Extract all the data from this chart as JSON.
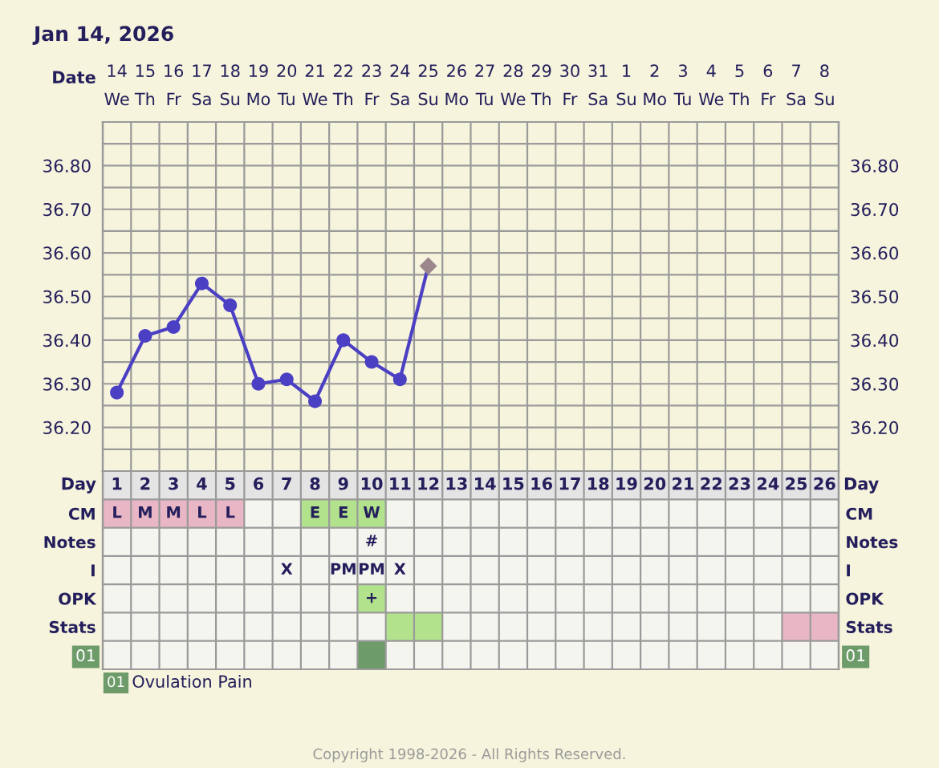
{
  "chart_data": [
    {
      "type": "line",
      "title": "Jan 14, 2026",
      "xlabel": "Date",
      "categories": [
        "14\nWe",
        "15\nTh",
        "16\nFr",
        "17\nSa",
        "18\nSu",
        "19\nMo",
        "20\nTu",
        "21\nWe",
        "22\nTh",
        "23\nFr",
        "24\nSa",
        "25\nSu",
        "26\nMo",
        "27\nTu",
        "28\nWe",
        "29\nTh",
        "30\nFr",
        "31\nSa",
        "1\nSu",
        "2\nMo",
        "3\nTu",
        "4\nWe",
        "5\nTh",
        "6\nFr",
        "7\nSa",
        "8\nSu"
      ],
      "series": [
        {
          "type": "line",
          "color": "#4b3fc4",
          "marker": "none",
          "line_style": "solid",
          "values": [
            36.28,
            36.41,
            36.43,
            36.53,
            36.48,
            36.3,
            36.31,
            36.26,
            36.4,
            36.35,
            36.31,
            36.57,
            null,
            null,
            null,
            null,
            null,
            null,
            null,
            null,
            null,
            null,
            null,
            null,
            null,
            null
          ]
        },
        {
          "type": "scatter",
          "color": "#4b3fc4",
          "marker": "circle",
          "values": [
            36.28,
            36.41,
            36.43,
            36.53,
            36.48,
            36.3,
            36.31,
            36.26,
            36.4,
            36.35,
            36.31,
            null,
            null,
            null,
            null,
            null,
            null,
            null,
            null,
            null,
            null,
            null,
            null,
            null,
            null,
            null
          ]
        },
        {
          "type": "scatter",
          "color": "#9c888c",
          "marker": "diamond",
          "values": [
            null,
            null,
            null,
            null,
            null,
            null,
            null,
            null,
            null,
            null,
            null,
            36.57,
            null,
            null,
            null,
            null,
            null,
            null,
            null,
            null,
            null,
            null,
            null,
            null,
            null,
            null
          ]
        }
      ],
      "ylim": [
        36.1,
        36.9
      ],
      "yticks": [
        {
          "value": 36.15,
          "label": null
        },
        {
          "value": 36.2,
          "label": "36.20"
        },
        {
          "value": 36.25,
          "label": null
        },
        {
          "value": 36.3,
          "label": "36.30"
        },
        {
          "value": 36.35,
          "label": null
        },
        {
          "value": 36.4,
          "label": "36.40"
        },
        {
          "value": 36.45,
          "label": null
        },
        {
          "value": 36.5,
          "label": "36.50"
        },
        {
          "value": 36.55,
          "label": null
        },
        {
          "value": 36.6,
          "label": "36.60"
        },
        {
          "value": 36.65,
          "label": null
        },
        {
          "value": 36.7,
          "label": "36.70"
        },
        {
          "value": 36.75,
          "label": null
        },
        {
          "value": 36.8,
          "label": "36.80"
        },
        {
          "value": 36.85,
          "label": null
        }
      ],
      "y2lim": [
        36.1,
        36.9
      ],
      "y2ticks": [
        {
          "value": 36.15,
          "label": null
        },
        {
          "value": 36.2,
          "label": "36.20"
        },
        {
          "value": 36.25,
          "label": null
        },
        {
          "value": 36.3,
          "label": "36.30"
        },
        {
          "value": 36.35,
          "label": null
        },
        {
          "value": 36.4,
          "label": "36.40"
        },
        {
          "value": 36.45,
          "label": null
        },
        {
          "value": 36.5,
          "label": "36.50"
        },
        {
          "value": 36.55,
          "label": null
        },
        {
          "value": 36.6,
          "label": "36.60"
        },
        {
          "value": 36.65,
          "label": null
        },
        {
          "value": 36.7,
          "label": "36.70"
        },
        {
          "value": 36.75,
          "label": null
        },
        {
          "value": 36.8,
          "label": "36.80"
        },
        {
          "value": 36.85,
          "label": null
        }
      ],
      "grid": true
    },
    {
      "type": "heatmap",
      "xlabel": "Day",
      "categories": [
        "1",
        "2",
        "3",
        "4",
        "5",
        "6",
        "7",
        "8",
        "9",
        "10",
        "11",
        "12",
        "13",
        "14",
        "15",
        "16",
        "17",
        "18",
        "19",
        "20",
        "21",
        "22",
        "23",
        "24",
        "25",
        "26"
      ],
      "y_categories": [
        "CM",
        "Notes",
        "I",
        "OPK",
        "Stats",
        "01"
      ],
      "y2_categories": [
        "CM",
        "Notes",
        "I",
        "OPK",
        "Stats",
        "01"
      ],
      "cells": [
        [
          "L",
          "M",
          "M",
          "L",
          "L",
          null,
          null,
          "E",
          "E",
          "W",
          null,
          null,
          null,
          null,
          null,
          null,
          null,
          null,
          null,
          null,
          null,
          null,
          null,
          null,
          null,
          null
        ],
        [
          null,
          null,
          null,
          null,
          null,
          null,
          null,
          null,
          null,
          "#",
          null,
          null,
          null,
          null,
          null,
          null,
          null,
          null,
          null,
          null,
          null,
          null,
          null,
          null,
          null,
          null
        ],
        [
          null,
          null,
          null,
          null,
          null,
          null,
          "X",
          null,
          "PM",
          "PM",
          "X",
          null,
          null,
          null,
          null,
          null,
          null,
          null,
          null,
          null,
          null,
          null,
          null,
          null,
          null,
          null
        ],
        [
          null,
          null,
          null,
          null,
          null,
          null,
          null,
          null,
          null,
          "+",
          null,
          null,
          null,
          null,
          null,
          null,
          null,
          null,
          null,
          null,
          null,
          null,
          null,
          null,
          null,
          null
        ],
        [
          null,
          null,
          null,
          null,
          null,
          null,
          null,
          null,
          null,
          null,
          true,
          true,
          null,
          null,
          null,
          null,
          null,
          null,
          null,
          null,
          null,
          null,
          null,
          null,
          true,
          true
        ],
        [
          null,
          null,
          null,
          null,
          null,
          null,
          null,
          null,
          null,
          true,
          null,
          null,
          null,
          null,
          null,
          null,
          null,
          null,
          null,
          null,
          null,
          null,
          null,
          null,
          null,
          null
        ]
      ],
      "colors": [
        [
          "#e8b6c4",
          "#e8b6c4",
          "#e8b6c4",
          "#e8b6c4",
          "#e8b6c4",
          null,
          null,
          "#b2e28c",
          "#b2e28c",
          "#b2e28c",
          null,
          null,
          null,
          null,
          null,
          null,
          null,
          null,
          null,
          null,
          null,
          null,
          null,
          null,
          null,
          null
        ],
        [
          null,
          null,
          null,
          null,
          null,
          null,
          null,
          null,
          null,
          null,
          null,
          null,
          null,
          null,
          null,
          null,
          null,
          null,
          null,
          null,
          null,
          null,
          null,
          null,
          null,
          null
        ],
        [
          null,
          null,
          null,
          null,
          null,
          null,
          null,
          null,
          null,
          null,
          null,
          null,
          null,
          null,
          null,
          null,
          null,
          null,
          null,
          null,
          null,
          null,
          null,
          null,
          null,
          null
        ],
        [
          null,
          null,
          null,
          null,
          null,
          null,
          null,
          null,
          null,
          "#b2e28c",
          null,
          null,
          null,
          null,
          null,
          null,
          null,
          null,
          null,
          null,
          null,
          null,
          null,
          null,
          null,
          null
        ],
        [
          null,
          null,
          null,
          null,
          null,
          null,
          null,
          null,
          null,
          null,
          "#b2e28c",
          "#b2e28c",
          null,
          null,
          null,
          null,
          null,
          null,
          null,
          null,
          null,
          null,
          null,
          null,
          "#e8b6c4",
          "#e8b6c4"
        ],
        [
          null,
          null,
          null,
          null,
          null,
          null,
          null,
          null,
          null,
          "#6e9b6a",
          null,
          null,
          null,
          null,
          null,
          null,
          null,
          null,
          null,
          null,
          null,
          null,
          null,
          null,
          null,
          null
        ]
      ],
      "grid": true,
      "annotations": [
        "01",
        "Ovulation Pain",
        "Copyright 1998-2026 - All Rights Reserved."
      ]
    }
  ]
}
